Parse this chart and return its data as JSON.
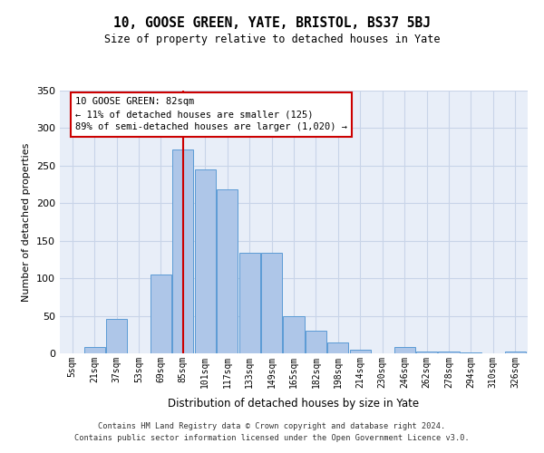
{
  "title": "10, GOOSE GREEN, YATE, BRISTOL, BS37 5BJ",
  "subtitle": "Size of property relative to detached houses in Yate",
  "xlabel": "Distribution of detached houses by size in Yate",
  "ylabel": "Number of detached properties",
  "bar_labels": [
    "5sqm",
    "21sqm",
    "37sqm",
    "53sqm",
    "69sqm",
    "85sqm",
    "101sqm",
    "117sqm",
    "133sqm",
    "149sqm",
    "165sqm",
    "182sqm",
    "198sqm",
    "214sqm",
    "230sqm",
    "246sqm",
    "262sqm",
    "278sqm",
    "294sqm",
    "310sqm",
    "326sqm"
  ],
  "bar_heights": [
    0,
    9,
    46,
    0,
    105,
    272,
    245,
    219,
    134,
    134,
    50,
    30,
    15,
    5,
    0,
    8,
    2,
    3,
    1,
    0,
    3
  ],
  "bar_color": "#aec6e8",
  "bar_edge_color": "#5b9bd5",
  "annotation_text": "10 GOOSE GREEN: 82sqm\n← 11% of detached houses are smaller (125)\n89% of semi-detached houses are larger (1,020) →",
  "annotation_box_color": "#ffffff",
  "annotation_box_edge": "#cc0000",
  "vline_color": "#cc0000",
  "grid_color": "#c8d4e8",
  "background_color": "#e8eef8",
  "footer_line1": "Contains HM Land Registry data © Crown copyright and database right 2024.",
  "footer_line2": "Contains public sector information licensed under the Open Government Licence v3.0.",
  "ylim": [
    0,
    350
  ],
  "yticks": [
    0,
    50,
    100,
    150,
    200,
    250,
    300,
    350
  ],
  "bin_width": 16,
  "vline_x": 85
}
